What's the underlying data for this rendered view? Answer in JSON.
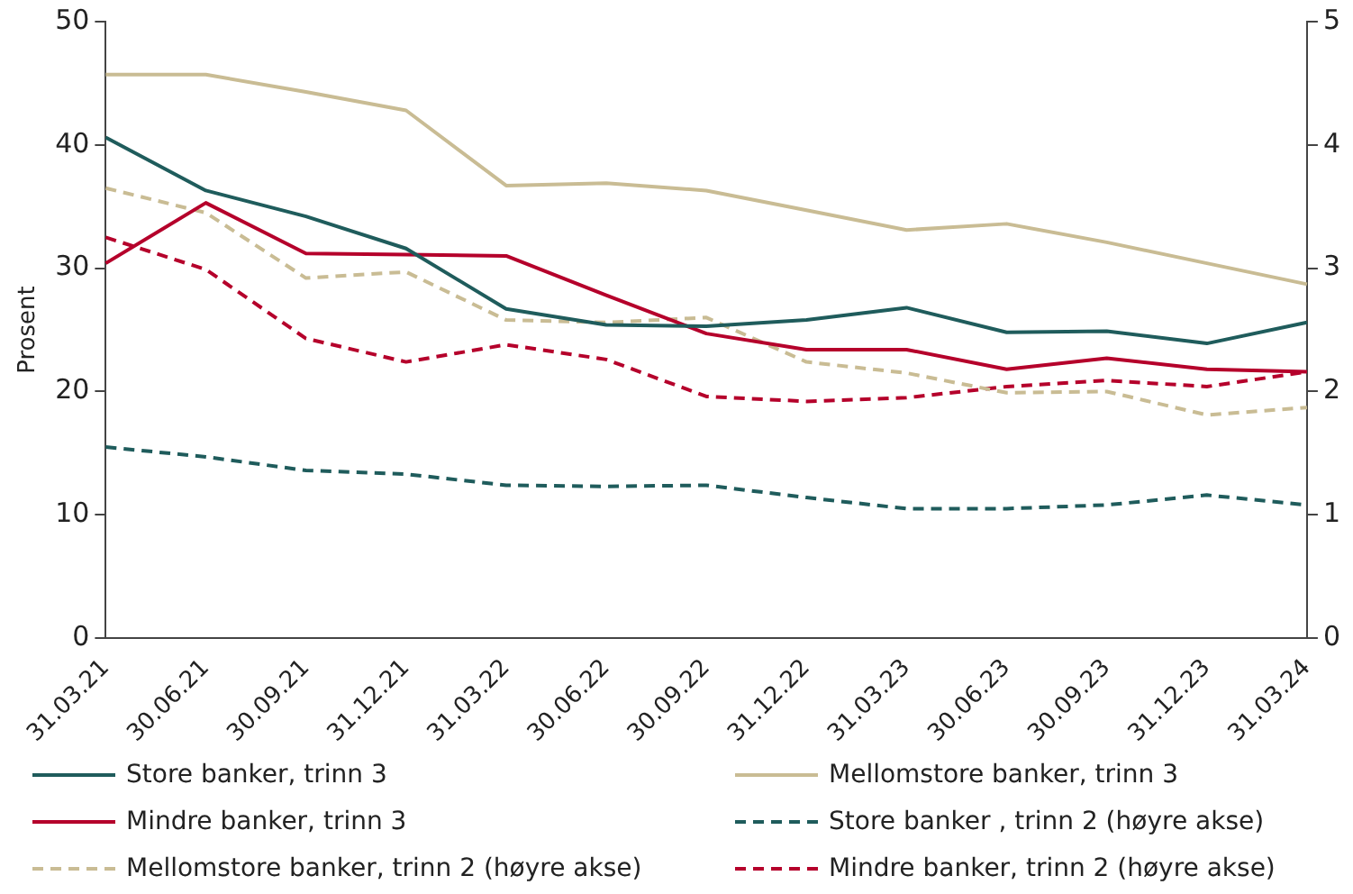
{
  "chart_data": {
    "type": "line",
    "ylabel": "Prosent",
    "categories": [
      "31.03.21",
      "30.06.21",
      "30.09.21",
      "31.12.21",
      "31.03.22",
      "30.06.22",
      "30.09.22",
      "31.12.22",
      "31.03.23",
      "30.06.23",
      "30.09.23",
      "31.12.23",
      "31.03.24"
    ],
    "series": [
      {
        "name": "Store banker, trinn 3",
        "color": "#1f5c5c",
        "line_style": "solid",
        "values": [
          40.6,
          36.3,
          34.2,
          31.6,
          26.7,
          25.4,
          25.3,
          25.8,
          26.8,
          24.8,
          24.9,
          23.9,
          25.6
        ]
      },
      {
        "name": "Mellomstore banker, trinn 3",
        "color": "#c9bc94",
        "line_style": "solid",
        "values": [
          45.7,
          45.7,
          44.3,
          42.8,
          36.7,
          36.9,
          36.3,
          34.7,
          33.1,
          33.6,
          32.1,
          30.4,
          28.7
        ]
      },
      {
        "name": "Mindre banker, trinn 3",
        "color": "#b5002b",
        "line_style": "solid",
        "values": [
          30.4,
          35.3,
          31.2,
          31.1,
          31.0,
          27.8,
          24.7,
          23.4,
          23.4,
          21.8,
          22.7,
          21.8,
          21.6
        ]
      },
      {
        "name": "Store banker , trinn 2 (høyre akse)",
        "color": "#1f5c5c",
        "line_style": "dashed",
        "axis": "y2",
        "values": [
          1.55,
          1.47,
          1.36,
          1.33,
          1.24,
          1.23,
          1.24,
          1.14,
          1.05,
          1.05,
          1.08,
          1.16,
          1.08
        ]
      },
      {
        "name": "Mellomstore banker, trinn 2 (høyre akse)",
        "color": "#c9bc94",
        "line_style": "dashed",
        "axis": "y2",
        "values": [
          3.65,
          3.45,
          2.92,
          2.97,
          2.58,
          2.56,
          2.6,
          2.24,
          2.15,
          1.99,
          2.0,
          1.81,
          1.87
        ]
      },
      {
        "name": "Mindre banker, trinn 2 (høyre akse)",
        "color": "#b5002b",
        "line_style": "dashed",
        "axis": "y2",
        "values": [
          3.25,
          2.99,
          2.43,
          2.24,
          2.38,
          2.26,
          1.96,
          1.92,
          1.95,
          2.04,
          2.09,
          2.04,
          2.16
        ]
      }
    ],
    "ylim": [
      0,
      50
    ],
    "yticks": [
      0,
      10,
      20,
      30,
      40,
      50
    ],
    "y2lim": [
      0,
      5
    ],
    "y2ticks": [
      0,
      1,
      2,
      3,
      4,
      5
    ],
    "grid": false,
    "legend": "bottom",
    "marker": "none"
  }
}
